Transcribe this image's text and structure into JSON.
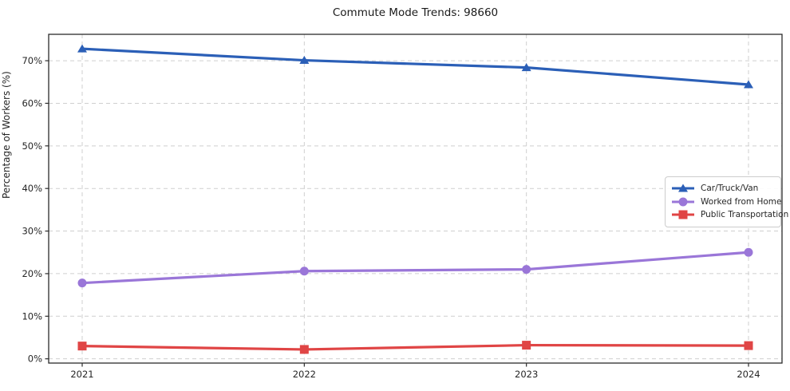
{
  "chart_data": {
    "type": "line",
    "title": "Commute Mode Trends: 98660",
    "xlabel": "",
    "ylabel": "Percentage of Workers (%)",
    "x": [
      "2021",
      "2022",
      "2023",
      "2024"
    ],
    "yticks": [
      {
        "value": 0,
        "label": "0%"
      },
      {
        "value": 10,
        "label": "10%"
      },
      {
        "value": 20,
        "label": "20%"
      },
      {
        "value": 30,
        "label": "30%"
      },
      {
        "value": 40,
        "label": "40%"
      },
      {
        "value": 50,
        "label": "50%"
      },
      {
        "value": 60,
        "label": "60%"
      },
      {
        "value": 70,
        "label": "70%"
      }
    ],
    "ylim": [
      -1,
      76.2
    ],
    "grid": {
      "visible": true,
      "style": "dashed",
      "color": "#cfcfcf"
    },
    "legend_position": "center right",
    "series": [
      {
        "name": "Car/Truck/Van",
        "color": "#2b5fb7",
        "marker": "triangle",
        "values": [
          72.8,
          70.1,
          68.4,
          64.4
        ]
      },
      {
        "name": "Worked from Home",
        "color": "#9a76d8",
        "marker": "circle",
        "values": [
          17.8,
          20.6,
          21.0,
          25.0
        ]
      },
      {
        "name": "Public Transportation",
        "color": "#e04545",
        "marker": "square",
        "values": [
          3.0,
          2.2,
          3.2,
          3.1
        ]
      }
    ],
    "frame_color": "#2b2b2b",
    "tick_label_color": "#262626"
  }
}
